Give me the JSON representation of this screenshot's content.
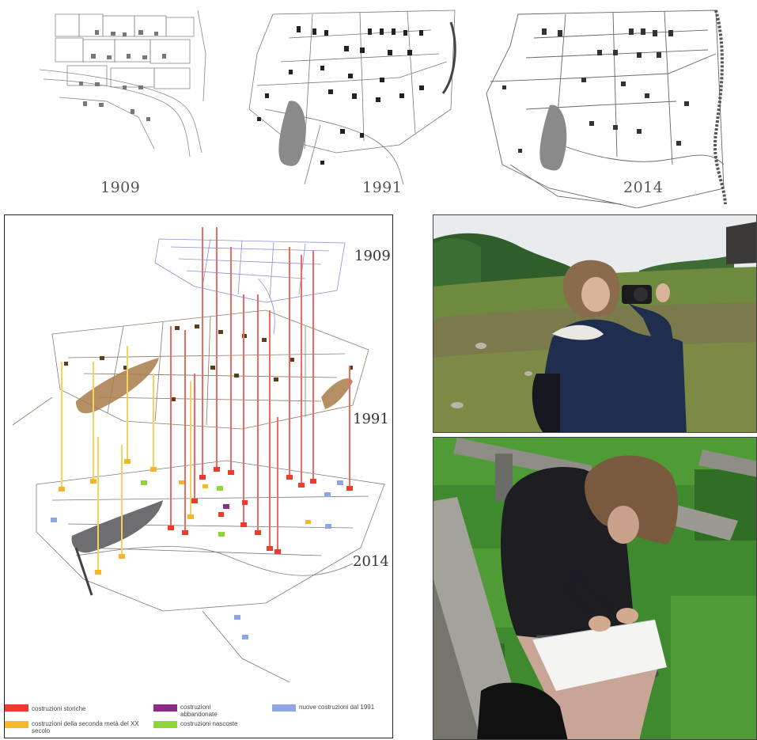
{
  "maps": [
    {
      "year": "1909"
    },
    {
      "year": "1991"
    },
    {
      "year": "2014"
    }
  ],
  "axonometric": {
    "years": [
      "1909",
      "1991",
      "2014"
    ],
    "legend": [
      {
        "label": "costruzioni storiche",
        "color": "#f03a2e"
      },
      {
        "label": "costruzioni della seconda metà del XX secolo",
        "color": "#f6b62b"
      },
      {
        "label": "costruzioni abbandonate",
        "color": "#8e2a8a"
      },
      {
        "label": "costruzioni nascoste",
        "color": "#8fd43a"
      },
      {
        "label": "nuove costruzioni dal 1991",
        "color": "#8fa6e6"
      }
    ]
  },
  "photos": [
    {
      "subject": "woman-with-camera"
    },
    {
      "subject": "woman-writing-on-bench"
    }
  ]
}
